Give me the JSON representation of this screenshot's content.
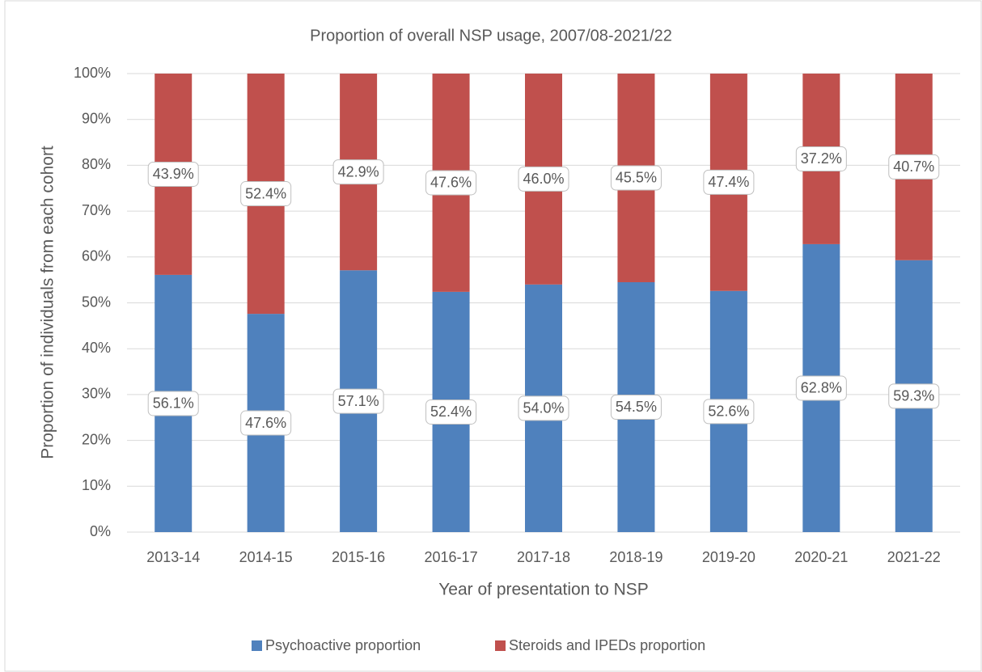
{
  "chart_data": {
    "type": "stacked-bar",
    "title": "Proportion of overall NSP usage, 2007/08-2021/22",
    "x_label": "Year of presentation to NSP",
    "y_label": "Proportion of individuals from each cohort",
    "categories": [
      "2013-14",
      "2014-15",
      "2015-16",
      "2016-17",
      "2017-18",
      "2018-19",
      "2019-20",
      "2020-21",
      "2021-22"
    ],
    "series": [
      {
        "name": "Psychoactive proportion",
        "color": "#4f81bd",
        "values": [
          56.1,
          47.6,
          57.1,
          52.4,
          54.0,
          54.5,
          52.6,
          62.8,
          59.3
        ],
        "value_labels": [
          "56.1%",
          "47.6%",
          "57.1%",
          "52.4%",
          "54.0%",
          "54.5%",
          "52.6%",
          "62.8%",
          "59.3%"
        ]
      },
      {
        "name": "Steroids and IPEDs proportion",
        "color": "#c0504d",
        "values": [
          43.9,
          52.4,
          42.9,
          47.6,
          46.0,
          45.5,
          47.4,
          37.2,
          40.7
        ],
        "value_labels": [
          "43.9%",
          "52.4%",
          "42.9%",
          "47.6%",
          "46.0%",
          "45.5%",
          "47.4%",
          "37.2%",
          "40.7%"
        ]
      }
    ],
    "ylim": [
      0,
      100
    ],
    "yticks": [
      {
        "value": 0,
        "label": "0%"
      },
      {
        "value": 10,
        "label": "10%"
      },
      {
        "value": 20,
        "label": "20%"
      },
      {
        "value": 30,
        "label": "30%"
      },
      {
        "value": 40,
        "label": "40%"
      },
      {
        "value": 50,
        "label": "50%"
      },
      {
        "value": 60,
        "label": "60%"
      },
      {
        "value": 70,
        "label": "70%"
      },
      {
        "value": 80,
        "label": "80%"
      },
      {
        "value": 90,
        "label": "90%"
      },
      {
        "value": 100,
        "label": "100%"
      }
    ],
    "grid": true,
    "legend": "bottom"
  }
}
